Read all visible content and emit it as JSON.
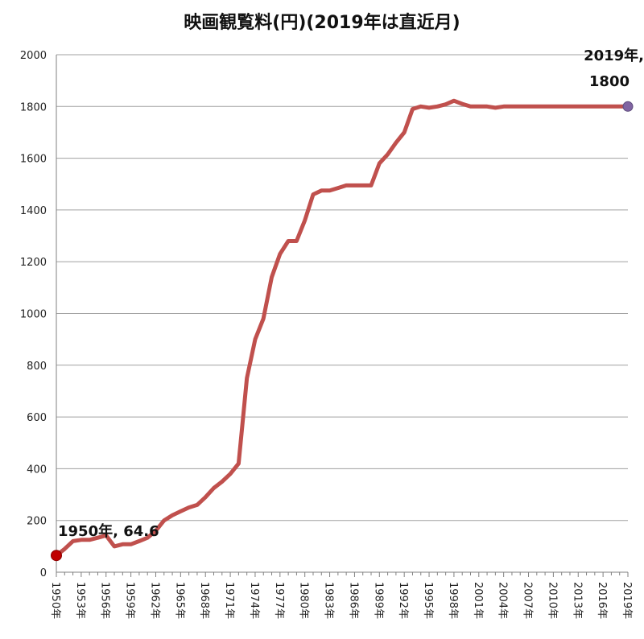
{
  "chart_data": {
    "type": "line",
    "title": "映画観覧料(円)(2019年は直近月)",
    "xlabel": "",
    "ylabel": "",
    "ylim": [
      0,
      2000
    ],
    "yticks": [
      0,
      200,
      400,
      600,
      800,
      1000,
      1200,
      1400,
      1600,
      1800,
      2000
    ],
    "xlim": [
      1950,
      2019
    ],
    "xtick_labels": [
      "1950年",
      "1953年",
      "1956年",
      "1959年",
      "1962年",
      "1965年",
      "1968年",
      "1971年",
      "1974年",
      "1977年",
      "1980年",
      "1983年",
      "1986年",
      "1989年",
      "1992年",
      "1995年",
      "1998年",
      "2001年",
      "2004年",
      "2007年",
      "2010年",
      "2013年",
      "2016年",
      "2019年"
    ],
    "grid": true,
    "legend": "none",
    "colors": {
      "line": "#c0504d",
      "start_marker": "#c00000",
      "end_marker": "#8064a2",
      "grid": "#a0a0a0"
    },
    "series": [
      {
        "x": [
          1950,
          1951,
          1952,
          1953,
          1954,
          1955,
          1956,
          1957,
          1958,
          1959,
          1960,
          1961,
          1962,
          1963,
          1964,
          1965,
          1966,
          1967,
          1968,
          1969,
          1970,
          1971,
          1972,
          1973,
          1974,
          1975,
          1976,
          1977,
          1978,
          1979,
          1980,
          1981,
          1982,
          1983,
          1984,
          1985,
          1986,
          1987,
          1988,
          1989,
          1990,
          1991,
          1992,
          1993,
          1994,
          1995,
          1996,
          1997,
          1998,
          1999,
          2000,
          2001,
          2002,
          2003,
          2004,
          2005,
          2006,
          2007,
          2008,
          2009,
          2010,
          2011,
          2012,
          2013,
          2014,
          2015,
          2016,
          2017,
          2018,
          2019
        ],
        "values": [
          64.6,
          90,
          120,
          125,
          125,
          133,
          142,
          100,
          108,
          108,
          120,
          133,
          160,
          200,
          220,
          235,
          250,
          260,
          290,
          325,
          350,
          380,
          420,
          750,
          900,
          980,
          1140,
          1230,
          1280,
          1280,
          1360,
          1460,
          1475,
          1475,
          1485,
          1495,
          1495,
          1495,
          1495,
          1580,
          1615,
          1660,
          1700,
          1790,
          1800,
          1795,
          1800,
          1808,
          1822,
          1810,
          1800,
          1800,
          1800,
          1795,
          1800,
          1800,
          1800,
          1800,
          1800,
          1800,
          1800,
          1800,
          1800,
          1800,
          1800,
          1800,
          1800,
          1800,
          1800,
          1800
        ]
      }
    ],
    "annotations": [
      {
        "x": 1950,
        "y": 64.6,
        "text": "1950年, 64.6"
      },
      {
        "x": 2019,
        "y": 1800,
        "text_line1": "2019年,",
        "text_line2": "1800"
      }
    ]
  }
}
